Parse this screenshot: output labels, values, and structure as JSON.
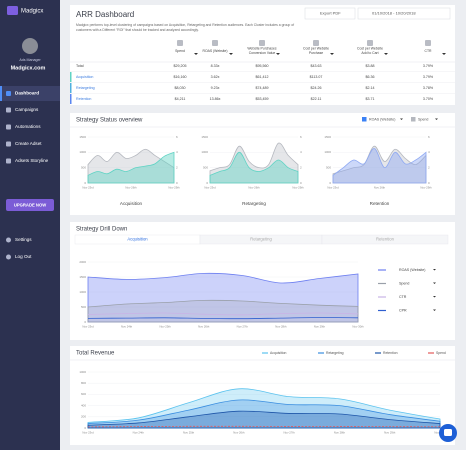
{
  "sidebar": {
    "brand": "Madgicx",
    "role": "Ads Manager",
    "account": "Madgicx.com",
    "menu": [
      "Dashboard",
      "Campaigns",
      "Automations",
      "Create Adset",
      "Adsets Storyline"
    ],
    "upgrade": "UPGRADE NOW",
    "bottom": [
      "Settings",
      "Log Out"
    ]
  },
  "header": {
    "title": "ARR Dashboard",
    "export": "Export PDF",
    "date_range": "01/10/2018 - 10/20/2018",
    "description": [
      "Madgicx performs top-level clustering of campaigns based on Acquisition, Retargeting and Retention audiences. Each Cluster includes a group of",
      "customers with a Different \"ROI\" that should be tracked and analyzed accordingly."
    ]
  },
  "table": {
    "columns": [
      [
        "Spend"
      ],
      [
        "ROAS (Website)"
      ],
      [
        "Website Purchases",
        "Conversion Value"
      ],
      [
        "Cost per Website",
        "Purchase"
      ],
      [
        "Cost per Website",
        "Add to Cart"
      ],
      [
        "CTR"
      ]
    ],
    "rows": [
      [
        "Total",
        "$29,205",
        "8.33x",
        "$95,560",
        "$43.63",
        "$3.88",
        "3.79%"
      ],
      [
        "Acquisition",
        "$16,160",
        "3.62x",
        "$61,412",
        "$113.07",
        "$6.36",
        "3.79%"
      ],
      [
        "Retargeting",
        "$8,030",
        "9.23x",
        "$74,489",
        "$24.26",
        "$2.14",
        "3.78%"
      ],
      [
        "Retention",
        "$4,211",
        "13.86x",
        "$53,459",
        "$22.11",
        "$3.71",
        "3.70%"
      ]
    ]
  },
  "status": {
    "title": "Strategy Status overview",
    "legend": [
      {
        "name": "ROAS (Website)",
        "color": "#3b82f6"
      },
      {
        "name": "Spend",
        "color": "#b5b8bf"
      }
    ],
    "ylim": [
      0,
      1500
    ],
    "yticks": [
      0,
      500,
      1000,
      1500
    ],
    "y2lim": [
      0,
      6
    ],
    "y2ticks": [
      0,
      2,
      4,
      6
    ],
    "charts": [
      {
        "label": "Acquisition",
        "color": "#5fd3c4",
        "date_labels": [
          "Nov 23rd",
          "Nov 26th",
          "Nov 29th"
        ],
        "spend": [
          600,
          900,
          700,
          1000,
          800,
          900,
          1100,
          900,
          700,
          500
        ],
        "roas": [
          1,
          1.5,
          1.2,
          1.8,
          1.5,
          2,
          2.2,
          2.5,
          3.5,
          4
        ]
      },
      {
        "label": "Retargeting",
        "color": "#5fd3c4",
        "date_labels": [
          "Nov 23rd",
          "Nov 26th",
          "Nov 29th"
        ],
        "spend": [
          400,
          500,
          600,
          1200,
          700,
          500,
          600,
          1300,
          900,
          600
        ],
        "roas": [
          1,
          1.5,
          2,
          4,
          2,
          1.5,
          2,
          3,
          2,
          1.5
        ]
      },
      {
        "label": "Retention",
        "color": "#8fa9f2",
        "date_labels": [
          "Nov 23rd",
          "Nov 26th",
          "Nov 29th"
        ],
        "spend": [
          300,
          400,
          500,
          600,
          1200,
          700,
          1100,
          800,
          600,
          900
        ],
        "roas": [
          1,
          2,
          3,
          2.5,
          4.5,
          2,
          4,
          2.5,
          3,
          4
        ]
      }
    ]
  },
  "drill": {
    "title": "Strategy Drill Down",
    "tabs": [
      "Acquisition",
      "Retargeting",
      "Retention"
    ],
    "ylim": [
      0,
      2000
    ],
    "yticks": [
      0,
      500,
      1000,
      1500,
      2000
    ],
    "x": [
      "Nov 23rd",
      "Nov 24th",
      "Nov 25th",
      "Nov 26th",
      "Nov 27th",
      "Nov 28th",
      "Nov 29th",
      "Nov 30th"
    ],
    "series": [
      {
        "name": "ROAS (Website)",
        "color": "#6d7ff0",
        "values": [
          1500,
          1420,
          1480,
          1620,
          1550,
          1300,
          1450,
          1600
        ]
      },
      {
        "name": "Spend",
        "color": "#9aa0aa",
        "values": [
          500,
          600,
          650,
          720,
          700,
          620,
          560,
          520
        ]
      },
      {
        "name": "CTR",
        "color": "#c9b3e6",
        "values": [
          250,
          280,
          300,
          260,
          240,
          280,
          300,
          270
        ]
      },
      {
        "name": "CPR",
        "color": "#2f5fd0",
        "values": [
          120,
          130,
          140,
          120,
          110,
          130,
          150,
          140
        ]
      }
    ]
  },
  "revenue": {
    "title": "Total Revenue",
    "ylim": [
      0,
      1000
    ],
    "yticks": [
      0,
      200,
      400,
      600,
      800,
      1000
    ],
    "x": [
      "Nov 23rd",
      "Nov 24th",
      "Nov 25th",
      "Nov 26th",
      "Nov 27th",
      "Nov 28th",
      "Nov 29th",
      "Nov 30th"
    ],
    "series": [
      {
        "name": "Acquisition",
        "color": "#5cc3ee",
        "values": [
          100,
          180,
          450,
          700,
          560,
          520,
          320,
          160
        ]
      },
      {
        "name": "Retargeting",
        "color": "#3a8ee0",
        "values": [
          80,
          140,
          320,
          500,
          420,
          400,
          240,
          120
        ]
      },
      {
        "name": "Retention",
        "color": "#1d55a8",
        "values": [
          50,
          90,
          200,
          300,
          260,
          250,
          150,
          80
        ]
      },
      {
        "name": "Spend",
        "color": "#e25a5a",
        "values": [
          20,
          25,
          30,
          30,
          28,
          26,
          24,
          22
        ]
      }
    ]
  }
}
